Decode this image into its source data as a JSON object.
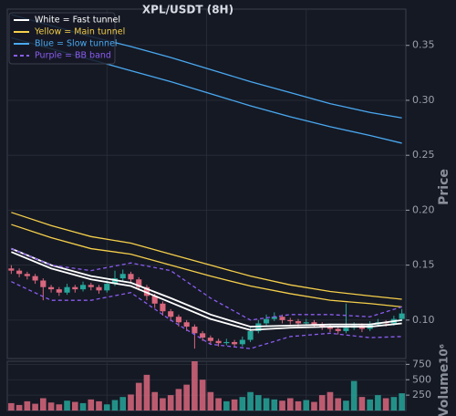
{
  "chart_data": [
    {
      "type": "candlestick",
      "title": "XPL/USDT (8H)",
      "y_label": "Price",
      "ylim": [
        0.065,
        0.383
      ],
      "yticks": [
        {
          "value": 0.1,
          "label": "0.10"
        },
        0.15,
        {
          "value": 0.2,
          "label": "0.20"
        },
        0.25,
        {
          "value": 0.3,
          "label": "0.30"
        },
        0.35
      ],
      "grid": true,
      "legend": "upper left",
      "up_color": "#26a69a",
      "down_color": "#d9677e",
      "open": [
        0.147,
        0.145,
        0.142,
        0.14,
        0.136,
        0.13,
        0.128,
        0.125,
        0.13,
        0.128,
        0.132,
        0.13,
        0.127,
        0.133,
        0.138,
        0.142,
        0.137,
        0.13,
        0.122,
        0.115,
        0.108,
        0.103,
        0.098,
        0.094,
        0.088,
        0.084,
        0.081,
        0.079,
        0.08,
        0.078,
        0.082,
        0.09,
        0.097,
        0.101,
        0.103,
        0.1,
        0.099,
        0.097,
        0.098,
        0.096,
        0.094,
        0.092,
        0.09,
        0.093,
        0.095,
        0.092,
        0.096,
        0.098,
        0.097,
        0.101
      ],
      "high": [
        0.15,
        0.147,
        0.144,
        0.142,
        0.138,
        0.132,
        0.13,
        0.133,
        0.132,
        0.135,
        0.134,
        0.132,
        0.136,
        0.145,
        0.146,
        0.144,
        0.139,
        0.132,
        0.124,
        0.117,
        0.11,
        0.105,
        0.1,
        0.096,
        0.09,
        0.086,
        0.083,
        0.083,
        0.082,
        0.085,
        0.093,
        0.1,
        0.105,
        0.107,
        0.105,
        0.102,
        0.101,
        0.101,
        0.1,
        0.098,
        0.096,
        0.094,
        0.115,
        0.098,
        0.097,
        0.099,
        0.101,
        0.1,
        0.104,
        0.11
      ],
      "low": [
        0.142,
        0.139,
        0.137,
        0.133,
        0.118,
        0.125,
        0.122,
        0.123,
        0.125,
        0.126,
        0.127,
        0.124,
        0.125,
        0.131,
        0.135,
        0.134,
        0.127,
        0.118,
        0.111,
        0.104,
        0.099,
        0.094,
        0.09,
        0.074,
        0.081,
        0.078,
        0.076,
        0.077,
        0.075,
        0.076,
        0.08,
        0.088,
        0.095,
        0.099,
        0.097,
        0.096,
        0.094,
        0.095,
        0.093,
        0.091,
        0.089,
        0.087,
        0.088,
        0.091,
        0.089,
        0.09,
        0.094,
        0.094,
        0.095,
        0.099
      ],
      "close": [
        0.145,
        0.142,
        0.14,
        0.136,
        0.13,
        0.128,
        0.125,
        0.13,
        0.128,
        0.132,
        0.13,
        0.127,
        0.133,
        0.138,
        0.142,
        0.137,
        0.13,
        0.122,
        0.115,
        0.108,
        0.103,
        0.098,
        0.094,
        0.088,
        0.084,
        0.081,
        0.079,
        0.08,
        0.078,
        0.082,
        0.09,
        0.097,
        0.101,
        0.103,
        0.1,
        0.099,
        0.097,
        0.098,
        0.096,
        0.094,
        0.092,
        0.09,
        0.093,
        0.095,
        0.092,
        0.096,
        0.098,
        0.097,
        0.101,
        0.106
      ],
      "line_x": [
        0,
        5,
        10,
        15,
        20,
        25,
        30,
        35,
        40,
        45,
        49
      ],
      "series": [
        {
          "name": "White = Fast tunnel",
          "color": "#ffffff",
          "dashed": false,
          "upper": [
            0.165,
            0.15,
            0.14,
            0.134,
            0.12,
            0.105,
            0.094,
            0.095,
            0.096,
            0.096,
            0.1
          ],
          "lower": [
            0.162,
            0.147,
            0.137,
            0.131,
            0.116,
            0.101,
            0.091,
            0.093,
            0.094,
            0.094,
            0.097
          ]
        },
        {
          "name": "Yellow = Main tunnel",
          "color": "#f5cf4a",
          "dashed": false,
          "upper": [
            0.198,
            0.186,
            0.176,
            0.17,
            0.16,
            0.15,
            0.14,
            0.132,
            0.126,
            0.122,
            0.119
          ],
          "lower": [
            0.187,
            0.175,
            0.165,
            0.16,
            0.15,
            0.14,
            0.131,
            0.124,
            0.118,
            0.115,
            0.112
          ]
        },
        {
          "name": "Blue = Slow tunnel",
          "color": "#4aa8f0",
          "dashed": false,
          "upper": [
            0.378,
            0.368,
            0.358,
            0.349,
            0.339,
            0.328,
            0.317,
            0.307,
            0.297,
            0.289,
            0.284
          ],
          "lower": [
            0.357,
            0.347,
            0.337,
            0.327,
            0.317,
            0.306,
            0.295,
            0.285,
            0.276,
            0.268,
            0.261
          ]
        },
        {
          "name": "Purple = BB band",
          "color": "#8a5cf0",
          "dashed": true,
          "upper": [
            0.165,
            0.15,
            0.145,
            0.152,
            0.145,
            0.12,
            0.1,
            0.105,
            0.105,
            0.103,
            0.112
          ],
          "lower": [
            0.135,
            0.118,
            0.118,
            0.125,
            0.1,
            0.078,
            0.074,
            0.085,
            0.088,
            0.084,
            0.085
          ]
        }
      ]
    },
    {
      "type": "bar",
      "y_label": "Volume",
      "y_scale_label": "10⁶",
      "ylim": [
        0,
        800
      ],
      "yticks": [
        250,
        500,
        750
      ],
      "grid": true,
      "values": [
        120,
        90,
        150,
        110,
        200,
        130,
        100,
        160,
        140,
        120,
        180,
        150,
        100,
        170,
        220,
        260,
        450,
        580,
        300,
        200,
        250,
        350,
        420,
        800,
        500,
        300,
        200,
        150,
        180,
        220,
        300,
        250,
        200,
        180,
        160,
        200,
        150,
        170,
        140,
        250,
        300,
        200,
        160,
        480,
        220,
        180,
        250,
        200,
        220,
        280
      ]
    }
  ]
}
